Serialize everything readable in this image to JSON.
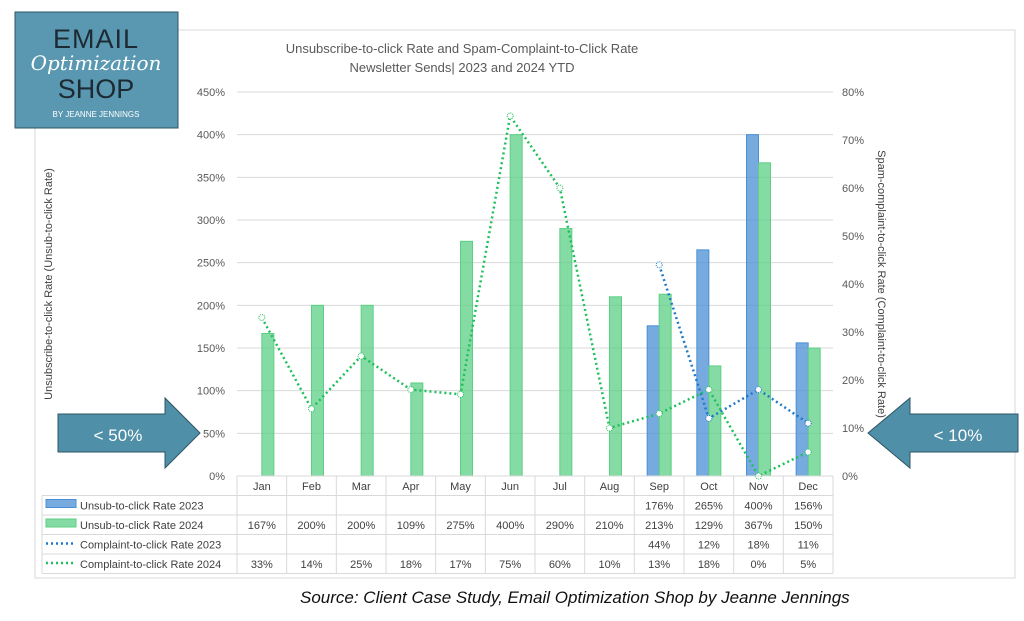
{
  "logo": {
    "line1": "EMAIL",
    "line2": "Optimization",
    "line3": "SHOP",
    "line4": "BY JEANNE JENNINGS",
    "color": "#5a97b0"
  },
  "callouts": {
    "left": "< 50%",
    "right": "< 10%",
    "color": "#4f8fa8"
  },
  "source": "Source: Client Case Study, Email Optimization Shop by Jeanne Jennings",
  "chart_data": {
    "type": "bar",
    "title": "Unsubscribe-to-click  Rate and Spam-Complaint-to-Click Rate",
    "subtitle": "Newsletter Sends|  2023 and 2024 YTD",
    "ylabel": "Unsubscribe-to-click Rate (Unsub-to-click Rate)",
    "y2label": "Spam-complaint-to-click Rate (Complaint-to-click Rate)",
    "ylim": [
      0,
      450
    ],
    "y2lim": [
      0,
      80
    ],
    "yticks": [
      "0%",
      "50%",
      "100%",
      "150%",
      "200%",
      "250%",
      "300%",
      "350%",
      "400%",
      "450%"
    ],
    "y2ticks": [
      "0%",
      "10%",
      "20%",
      "30%",
      "40%",
      "50%",
      "60%",
      "70%",
      "80%"
    ],
    "grid": true,
    "legend": "data-table",
    "categories": [
      "Jan",
      "Feb",
      "Mar",
      "Apr",
      "May",
      "Jun",
      "Jul",
      "Aug",
      "Sep",
      "Oct",
      "Nov",
      "Dec"
    ],
    "series": [
      {
        "name": "Unsub-to-click Rate 2023",
        "kind": "bar",
        "axis": "left",
        "color": "#4a8fd6",
        "values": [
          null,
          null,
          null,
          null,
          null,
          null,
          null,
          null,
          176,
          265,
          400,
          156
        ]
      },
      {
        "name": "Unsub-to-click Rate 2024",
        "kind": "bar",
        "axis": "left",
        "color": "#5ccf85",
        "values": [
          167,
          200,
          200,
          109,
          275,
          400,
          290,
          210,
          213,
          129,
          367,
          150
        ]
      },
      {
        "name": "Complaint-to-click Rate 2023",
        "kind": "line",
        "axis": "right",
        "color": "#1f78c8",
        "values": [
          null,
          null,
          null,
          null,
          null,
          null,
          null,
          null,
          44,
          12,
          18,
          11
        ]
      },
      {
        "name": "Complaint-to-click Rate 2024",
        "kind": "line",
        "axis": "right",
        "color": "#1fbf5a",
        "values": [
          33,
          14,
          25,
          18,
          17,
          75,
          60,
          10,
          13,
          18,
          0,
          5
        ]
      }
    ]
  }
}
